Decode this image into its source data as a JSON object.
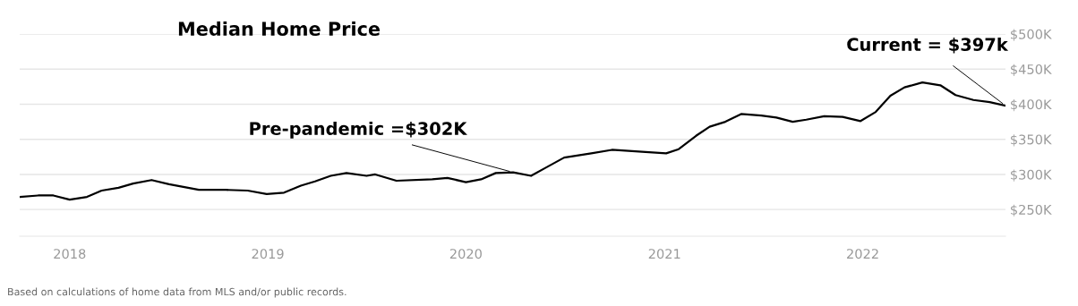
{
  "chart_data": {
    "type": "line",
    "title": "Median Home Price",
    "x": [
      "2017-10-01",
      "2017-11-04",
      "2017-12-02",
      "2018-01-01",
      "2018-02-02",
      "2018-03-01",
      "2018-04-01",
      "2018-04-28",
      "2018-06-01",
      "2018-07-03",
      "2018-07-25",
      "2018-08-27",
      "2018-10-16",
      "2018-11-25",
      "2018-12-30",
      "2019-01-31",
      "2019-03-03",
      "2019-03-29",
      "2019-04-27",
      "2019-05-26",
      "2019-07-02",
      "2019-07-18",
      "2019-08-26",
      "2019-10-31",
      "2019-11-28",
      "2020-01-01",
      "2020-01-29",
      "2020-02-25",
      "2020-03-28",
      "2020-04-30",
      "2020-05-28",
      "2020-06-30",
      "2020-08-19",
      "2020-09-26",
      "2020-11-27",
      "2021-01-04",
      "2021-01-27",
      "2021-02-28",
      "2021-03-25",
      "2021-04-23",
      "2021-05-22",
      "2021-06-28",
      "2021-07-26",
      "2021-08-25",
      "2021-09-19",
      "2021-10-22",
      "2021-11-25",
      "2021-12-28",
      "2022-01-25",
      "2022-02-21",
      "2022-03-19",
      "2022-04-21",
      "2022-05-24",
      "2022-06-21",
      "2022-07-24",
      "2022-08-23",
      "2022-09-21"
    ],
    "series": [
      {
        "color": "#000000",
        "values": [
          268000,
          270000,
          270000,
          264000,
          268000,
          277000,
          281000,
          287000,
          292000,
          286000,
          283000,
          278000,
          278000,
          277000,
          272000,
          274000,
          284000,
          290000,
          298000,
          302000,
          298000,
          300000,
          291000,
          293000,
          295000,
          289000,
          293000,
          302000,
          303000,
          298000,
          310000,
          324000,
          330000,
          335000,
          332000,
          330000,
          336000,
          355000,
          368000,
          375000,
          386000,
          384000,
          381000,
          375000,
          378000,
          383000,
          382000,
          376000,
          389000,
          412000,
          424000,
          431000,
          427000,
          413000,
          406000,
          403000,
          398000
        ]
      }
    ],
    "xlim": [
      "2017-10-01",
      "2022-09-21"
    ],
    "xticks": [
      "2018",
      "2019",
      "2020",
      "2021",
      "2022"
    ],
    "ylim": [
      212000,
      500000
    ],
    "yticks": [
      {
        "value": 250000,
        "label": "$250K"
      },
      {
        "value": 300000,
        "label": "$300K"
      },
      {
        "value": 350000,
        "label": "$350K"
      },
      {
        "value": 400000,
        "label": "$400K"
      },
      {
        "value": 450000,
        "label": "$450K"
      },
      {
        "value": 500000,
        "label": "$500K"
      }
    ],
    "grid": "y",
    "marker": "none",
    "line_style": "solid",
    "annotations": [
      {
        "text": "Pre-pandemic =$302K",
        "x": "2020-03-28",
        "y": 303000
      },
      {
        "text": "Current = $397k",
        "x": "2022-09-21",
        "y": 398000
      },
      "Based on calculations of home data from MLS and/or public records."
    ]
  }
}
